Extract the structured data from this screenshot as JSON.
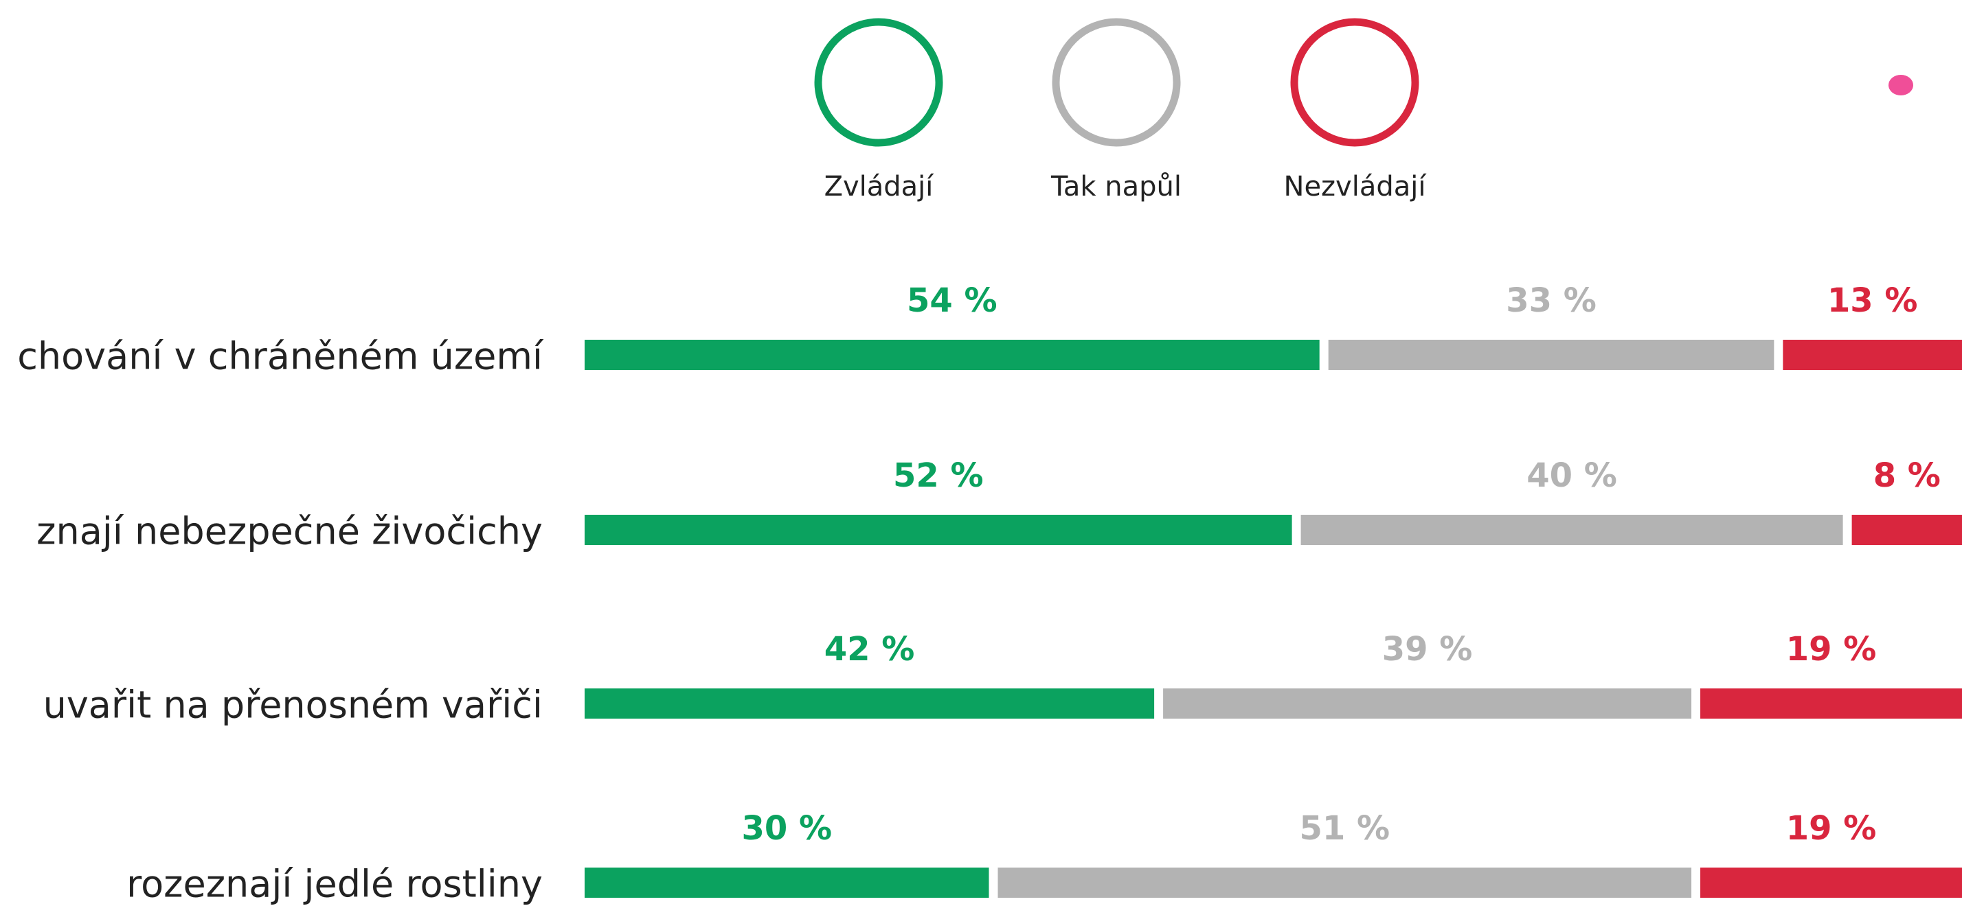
{
  "chart_data": {
    "type": "bar",
    "orientation": "horizontal",
    "stacked": true,
    "categories": [
      "chování v chráněném území",
      "znají nebezpečné živočichy",
      "uvařit na přenosném vařiči",
      "rozeznají jedlé rostliny"
    ],
    "series": [
      {
        "name": "Zvládají",
        "color": "#0ba25f",
        "values": [
          54,
          52,
          42,
          30
        ],
        "value_labels": [
          "54 %",
          "52 %",
          "42 %",
          "30 %"
        ]
      },
      {
        "name": "Tak napůl",
        "color": "#b3b3b3",
        "values": [
          33,
          40,
          39,
          51
        ],
        "value_labels": [
          "33 %",
          "40 %",
          "39 %",
          "51 %"
        ]
      },
      {
        "name": "Nezvládají",
        "color": "#d9263e",
        "values": [
          13,
          8,
          19,
          19
        ],
        "value_labels": [
          "13 %",
          "8 %",
          "19 %",
          "19 %"
        ]
      }
    ]
  }
}
